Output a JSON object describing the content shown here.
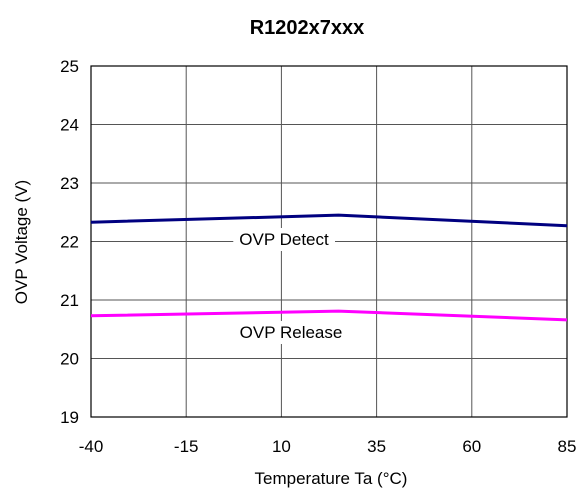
{
  "chart_data": {
    "type": "line",
    "title": "R1202x7xxx",
    "xlabel": "Temperature Ta (°C)",
    "ylabel": "OVP Voltage (V)",
    "x_ticks": [
      -40,
      -15,
      10,
      35,
      60,
      85
    ],
    "x_tick_labels": [
      "-40",
      "-15",
      "10",
      "35",
      "60",
      "85"
    ],
    "xlim": [
      -40,
      85
    ],
    "y_ticks": [
      19,
      20,
      21,
      22,
      23,
      24,
      25
    ],
    "y_tick_labels": [
      "19",
      "20",
      "21",
      "22",
      "23",
      "24",
      "25"
    ],
    "ylim": [
      19,
      25
    ],
    "grid": true,
    "series": [
      {
        "name": "OVP Detect",
        "color": "#000080",
        "x": [
          -40,
          25,
          85
        ],
        "y": [
          22.33,
          22.45,
          22.27
        ]
      },
      {
        "name": "OVP Release",
        "color": "#ff00ff",
        "x": [
          -40,
          25,
          85
        ],
        "y": [
          20.73,
          20.81,
          20.66
        ]
      }
    ]
  }
}
